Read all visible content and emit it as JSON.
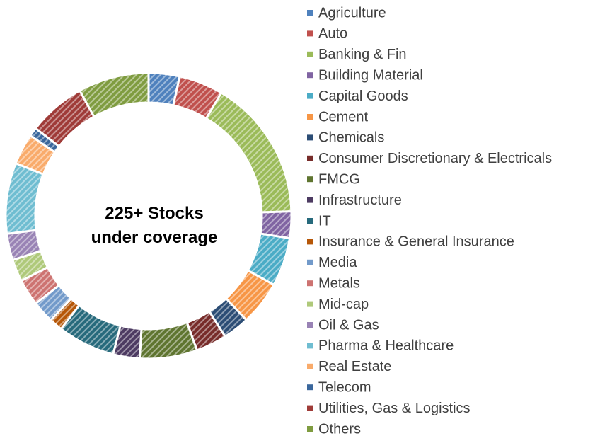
{
  "chart_data": {
    "type": "donut",
    "center_label": "225+ Stocks under coverage",
    "categories": [
      "Agriculture",
      "Auto",
      "Banking & Fin",
      "Building Material",
      "Capital Goods",
      "Cement",
      "Chemicals",
      "Consumer Discretionary & Electricals",
      "FMCG",
      "Infrastructure",
      "IT",
      "Insurance & General Insurance",
      "Media",
      "Metals",
      "Mid-cap",
      "Oil & Gas",
      "Pharma & Healthcare",
      "Real Estate",
      "Telecom",
      "Utilities, Gas & Logistics",
      "Others"
    ],
    "values": [
      3.5,
      5,
      16,
      3,
      5.5,
      5,
      3,
      3.5,
      6.5,
      3,
      6.5,
      1.5,
      2.5,
      3,
      2.5,
      3,
      8,
      3.5,
      1,
      6.5,
      8
    ],
    "colors": [
      "#4f81bd",
      "#c0504d",
      "#9bbb59",
      "#8064a2",
      "#4bacc6",
      "#f79646",
      "#2c4d75",
      "#772c2a",
      "#5f7530",
      "#4d3b62",
      "#276a7c",
      "#b65708",
      "#729aca",
      "#cd7371",
      "#afc97a",
      "#9983b5",
      "#6fbdd1",
      "#f9ab6b",
      "#3a679c",
      "#9f3b38",
      "#7f9c40"
    ],
    "legend": "right"
  }
}
